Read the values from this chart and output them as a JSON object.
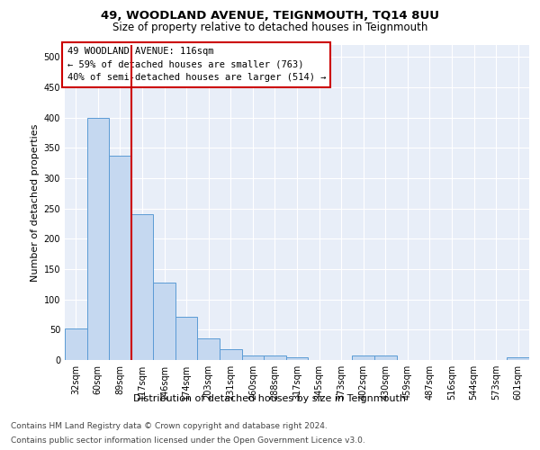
{
  "title1": "49, WOODLAND AVENUE, TEIGNMOUTH, TQ14 8UU",
  "title2": "Size of property relative to detached houses in Teignmouth",
  "xlabel": "Distribution of detached houses by size in Teignmouth",
  "ylabel": "Number of detached properties",
  "categories": [
    "32sqm",
    "60sqm",
    "89sqm",
    "117sqm",
    "146sqm",
    "174sqm",
    "203sqm",
    "231sqm",
    "260sqm",
    "288sqm",
    "317sqm",
    "345sqm",
    "373sqm",
    "402sqm",
    "430sqm",
    "459sqm",
    "487sqm",
    "516sqm",
    "544sqm",
    "573sqm",
    "601sqm"
  ],
  "values": [
    52,
    400,
    338,
    240,
    128,
    72,
    35,
    18,
    8,
    7,
    4,
    0,
    0,
    7,
    7,
    0,
    0,
    0,
    0,
    0,
    5
  ],
  "bar_color": "#c5d8f0",
  "bar_edge_color": "#5b9bd5",
  "ylim": [
    0,
    520
  ],
  "yticks": [
    0,
    50,
    100,
    150,
    200,
    250,
    300,
    350,
    400,
    450,
    500
  ],
  "annotation_box_text": "49 WOODLAND AVENUE: 116sqm\n← 59% of detached houses are smaller (763)\n40% of semi-detached houses are larger (514) →",
  "annotation_box_color": "#cc0000",
  "vline_x_bin": 2.5,
  "footer_line1": "Contains HM Land Registry data © Crown copyright and database right 2024.",
  "footer_line2": "Contains public sector information licensed under the Open Government Licence v3.0.",
  "background_color": "#e8eef8",
  "grid_color": "#ffffff",
  "title1_fontsize": 9.5,
  "title2_fontsize": 8.5,
  "tick_fontsize": 7,
  "ylabel_fontsize": 8,
  "xlabel_fontsize": 8,
  "footer_fontsize": 6.5,
  "annotation_fontsize": 7.5
}
